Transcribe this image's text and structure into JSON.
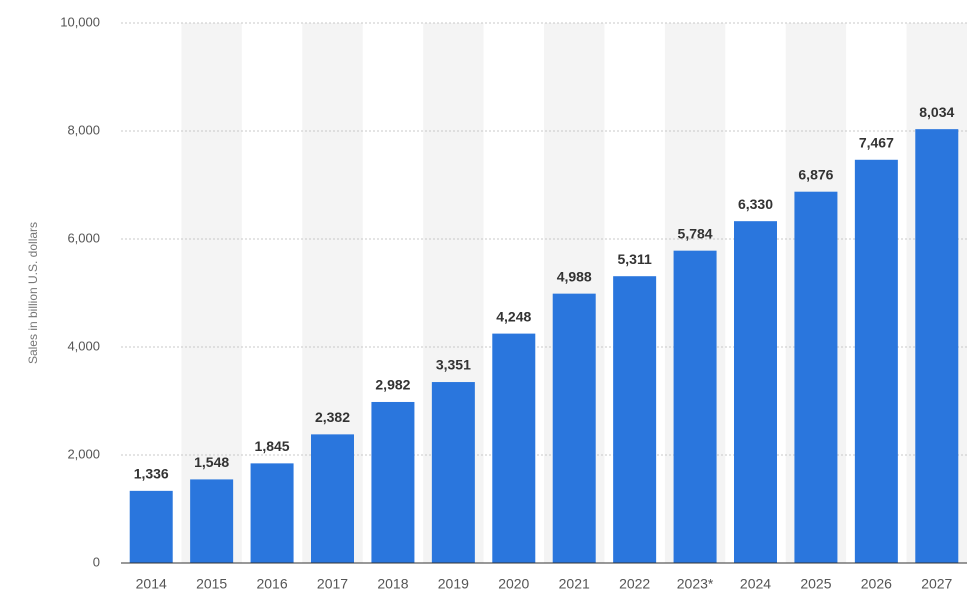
{
  "chart_data": {
    "type": "bar",
    "y_label": "Sales in billion U.S. dollars",
    "categories": [
      "2014",
      "2015",
      "2016",
      "2017",
      "2018",
      "2019",
      "2020",
      "2021",
      "2022",
      "2023*",
      "2024",
      "2025",
      "2026",
      "2027"
    ],
    "values": [
      1336,
      1548,
      1845,
      2382,
      2982,
      3351,
      4248,
      4988,
      5311,
      5784,
      6330,
      6876,
      7467,
      8034
    ],
    "value_labels": [
      "1,336",
      "1,548",
      "1,845",
      "2,382",
      "2,982",
      "3,351",
      "4,248",
      "4,988",
      "5,311",
      "5,784",
      "6,330",
      "6,876",
      "7,467",
      "8,034"
    ],
    "color": "#2a76dd",
    "ylim": [
      0,
      10000
    ],
    "yticks": [
      0,
      {
        "value": 2000,
        "label": "2,000"
      },
      {
        "value": 4000,
        "label": "4,000"
      },
      {
        "value": 6000,
        "label": "6,000"
      },
      {
        "value": 8000,
        "label": "8,000"
      },
      {
        "value": 10000,
        "label": "10,000"
      }
    ],
    "grid": true
  }
}
